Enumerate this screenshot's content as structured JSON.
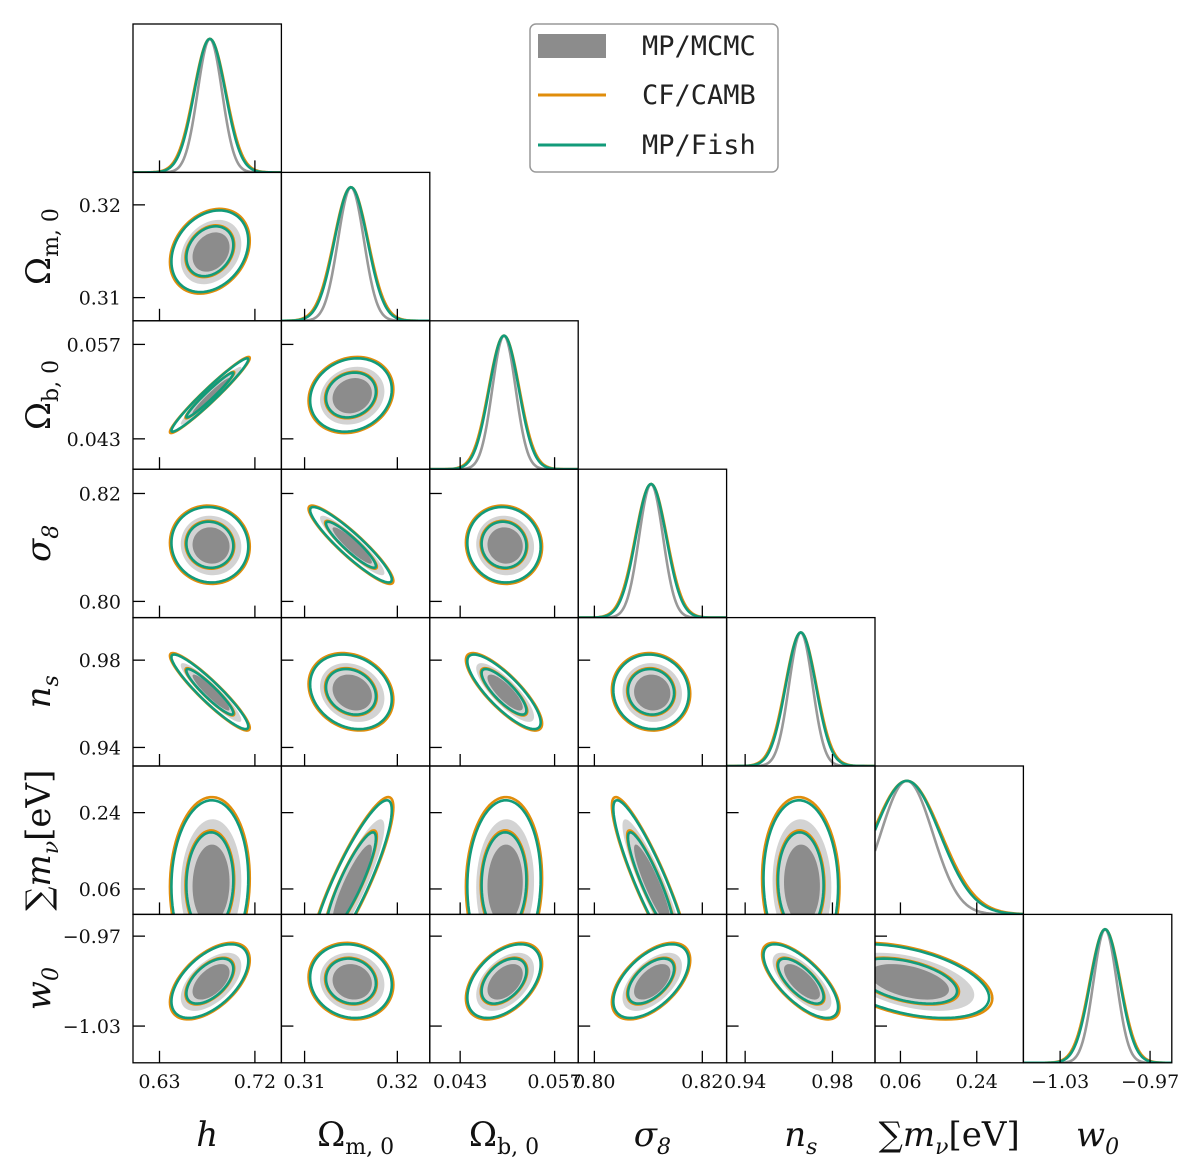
{
  "chart_data": {
    "type": "corner",
    "title": "",
    "parameters": [
      {
        "key": "h",
        "label": "h",
        "sub": "",
        "range": [
          0.605,
          0.745
        ],
        "ticks": [
          0.63,
          0.72
        ],
        "tick_labels": [
          "0.63",
          "0.72"
        ],
        "mean": 0.6775,
        "sigma": 0.014
      },
      {
        "key": "om",
        "label": "Ω",
        "sub": "m, 0",
        "range": [
          0.3075,
          0.3235
        ],
        "ticks": [
          0.31,
          0.32
        ],
        "tick_labels": [
          "0.31",
          "0.32"
        ],
        "mean": 0.315,
        "sigma": 0.0017
      },
      {
        "key": "ob",
        "label": "Ω",
        "sub": "b, 0",
        "range": [
          0.0385,
          0.0605
        ],
        "ticks": [
          0.043,
          0.057
        ],
        "tick_labels": [
          "0.043",
          "0.057"
        ],
        "mean": 0.0495,
        "sigma": 0.0021
      },
      {
        "key": "s8",
        "label": "σ",
        "sub": "8",
        "range": [
          0.797,
          0.8245
        ],
        "ticks": [
          0.8,
          0.82
        ],
        "tick_labels": [
          "0.80",
          "0.82"
        ],
        "mean": 0.8105,
        "sigma": 0.0027
      },
      {
        "key": "ns",
        "label": "n",
        "sub": "s",
        "range": [
          0.9315,
          0.9995
        ],
        "ticks": [
          0.94,
          0.98
        ],
        "tick_labels": [
          "0.94",
          "0.98"
        ],
        "mean": 0.9655,
        "sigma": 0.0066
      },
      {
        "key": "mnu",
        "label": "∑m",
        "sub": "ν",
        "suffix": "[eV]",
        "range": [
          0.0,
          0.35
        ],
        "ticks": [
          0.06,
          0.24
        ],
        "tick_labels": [
          "0.06",
          "0.24"
        ],
        "mean": 0.075,
        "sigma": 0.075
      },
      {
        "key": "w0",
        "label": "w",
        "sub": "0",
        "range": [
          -1.0545,
          -0.9555
        ],
        "ticks": [
          -1.03,
          -0.97
        ],
        "tick_labels": [
          "−1.03",
          "−0.97"
        ],
        "mean": -1.0,
        "sigma": 0.0095
      }
    ],
    "correlations": [
      {
        "i": 1,
        "j": 0,
        "rho": 0.25
      },
      {
        "i": 2,
        "j": 0,
        "rho": 0.97
      },
      {
        "i": 2,
        "j": 1,
        "rho": 0.15
      },
      {
        "i": 3,
        "j": 0,
        "rho": -0.05
      },
      {
        "i": 3,
        "j": 1,
        "rho": -0.92
      },
      {
        "i": 3,
        "j": 2,
        "rho": -0.05
      },
      {
        "i": 4,
        "j": 0,
        "rho": -0.93
      },
      {
        "i": 4,
        "j": 1,
        "rho": -0.2
      },
      {
        "i": 4,
        "j": 2,
        "rho": -0.82
      },
      {
        "i": 4,
        "j": 3,
        "rho": -0.05
      },
      {
        "i": 5,
        "j": 0,
        "rho": 0.05
      },
      {
        "i": 5,
        "j": 1,
        "rho": 0.88
      },
      {
        "i": 5,
        "j": 2,
        "rho": 0.05
      },
      {
        "i": 5,
        "j": 3,
        "rho": -0.9
      },
      {
        "i": 5,
        "j": 4,
        "rho": -0.05
      },
      {
        "i": 6,
        "j": 0,
        "rho": 0.55
      },
      {
        "i": 6,
        "j": 1,
        "rho": -0.1
      },
      {
        "i": 6,
        "j": 2,
        "rho": 0.45
      },
      {
        "i": 6,
        "j": 3,
        "rho": 0.55
      },
      {
        "i": 6,
        "j": 4,
        "rho": -0.7
      },
      {
        "i": 6,
        "j": 5,
        "rho": -0.45
      }
    ],
    "series": [
      {
        "name": "MP/MCMC",
        "style": "filled",
        "color_inner": "#8c8c8c",
        "color_outer": "#d3d3d3",
        "line_color": "#999999",
        "width_scale": 0.82
      },
      {
        "name": "CF/CAMB",
        "style": "line",
        "color": "#e08d0b",
        "width_scale": 1.08
      },
      {
        "name": "MP/Fish",
        "style": "line",
        "color": "#129b7a",
        "width_scale": 1.04
      }
    ],
    "legend_position": "top-right"
  }
}
